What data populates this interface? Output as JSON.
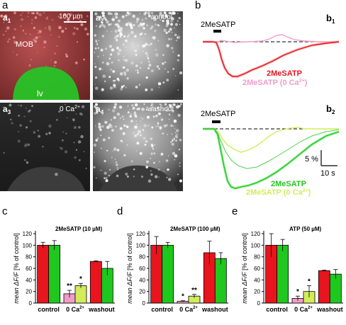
{
  "panel_labels": {
    "a": "a",
    "a1": "a",
    "a1_sub": "1",
    "a2": "a",
    "a2_sub": "2",
    "a3": "a",
    "a3_sub": "3",
    "a4": "a",
    "a4_sub": "4",
    "b": "b",
    "b1": "b",
    "b1_sub": "1",
    "b2": "b",
    "b2_sub": "2",
    "c": "c",
    "d": "d",
    "e": "e"
  },
  "images": {
    "scale_bar": "100 µm",
    "mob": "MOB",
    "lv": "lv",
    "a2_caption": "control",
    "a3_caption": "0 Ca",
    "a3_sup": "2+",
    "a4_caption": "washout"
  },
  "traces": {
    "b1_stim": "2MeSATP",
    "b1_leg1": "2MeSATP",
    "b1_leg2": "2MeSATP (0 Ca",
    "b1_leg2_sup": "2+",
    "b1_leg2_end": ")",
    "b2_stim": "2MeSATP",
    "b2_leg1": "2MeSATP",
    "b2_leg2": "2MeSATP (0 Ca",
    "b2_leg2_sup": "2+",
    "b2_leg2_end": ")",
    "scale_y": "5 %",
    "scale_x": "10 s"
  },
  "colors": {
    "red": "#e8141e",
    "green": "#1ec81e",
    "pink": "#f29cc8",
    "lightgreen": "#d2ec5a"
  },
  "axis": {
    "ylabel_pre": "mean ΔF/F",
    "ylabel_post": "[% of control]",
    "xticks": [
      "control",
      "0 Ca",
      "washout"
    ],
    "xtick_sup": "2+",
    "yticks": [
      "0",
      "20",
      "40",
      "60",
      "80",
      "100",
      "120"
    ]
  },
  "chart_data": [
    {
      "type": "bar",
      "title": "2MeSATP (10 µM)",
      "categories": [
        "control",
        "0 Ca2+",
        "washout"
      ],
      "ylim": [
        0,
        120
      ],
      "series": [
        {
          "values": [
            100,
            16,
            72
          ],
          "errors": [
            5,
            6,
            1
          ]
        },
        {
          "values": [
            100,
            30,
            60
          ],
          "errors": [
            8,
            4,
            12
          ]
        }
      ],
      "significance": [
        "**",
        "*"
      ]
    },
    {
      "type": "bar",
      "title": "2MeSATP (100 µM)",
      "categories": [
        "control",
        "0 Ca2+",
        "washout"
      ],
      "ylim": [
        0,
        120
      ],
      "series": [
        {
          "values": [
            100,
            3,
            87
          ],
          "errors": [
            15,
            1,
            20
          ]
        },
        {
          "values": [
            100,
            12,
            77
          ],
          "errors": [
            5,
            3,
            10
          ]
        }
      ],
      "significance": [
        "*",
        "**"
      ]
    },
    {
      "type": "bar",
      "title": "ATP (50 µM)",
      "categories": [
        "control",
        "0 Ca2+",
        "washout"
      ],
      "ylim": [
        0,
        120
      ],
      "series": [
        {
          "values": [
            100,
            8,
            56
          ],
          "errors": [
            20,
            4,
            1
          ]
        },
        {
          "values": [
            100,
            20,
            50
          ],
          "errors": [
            10,
            10,
            8
          ]
        }
      ],
      "significance": [
        "*",
        "*"
      ]
    }
  ]
}
